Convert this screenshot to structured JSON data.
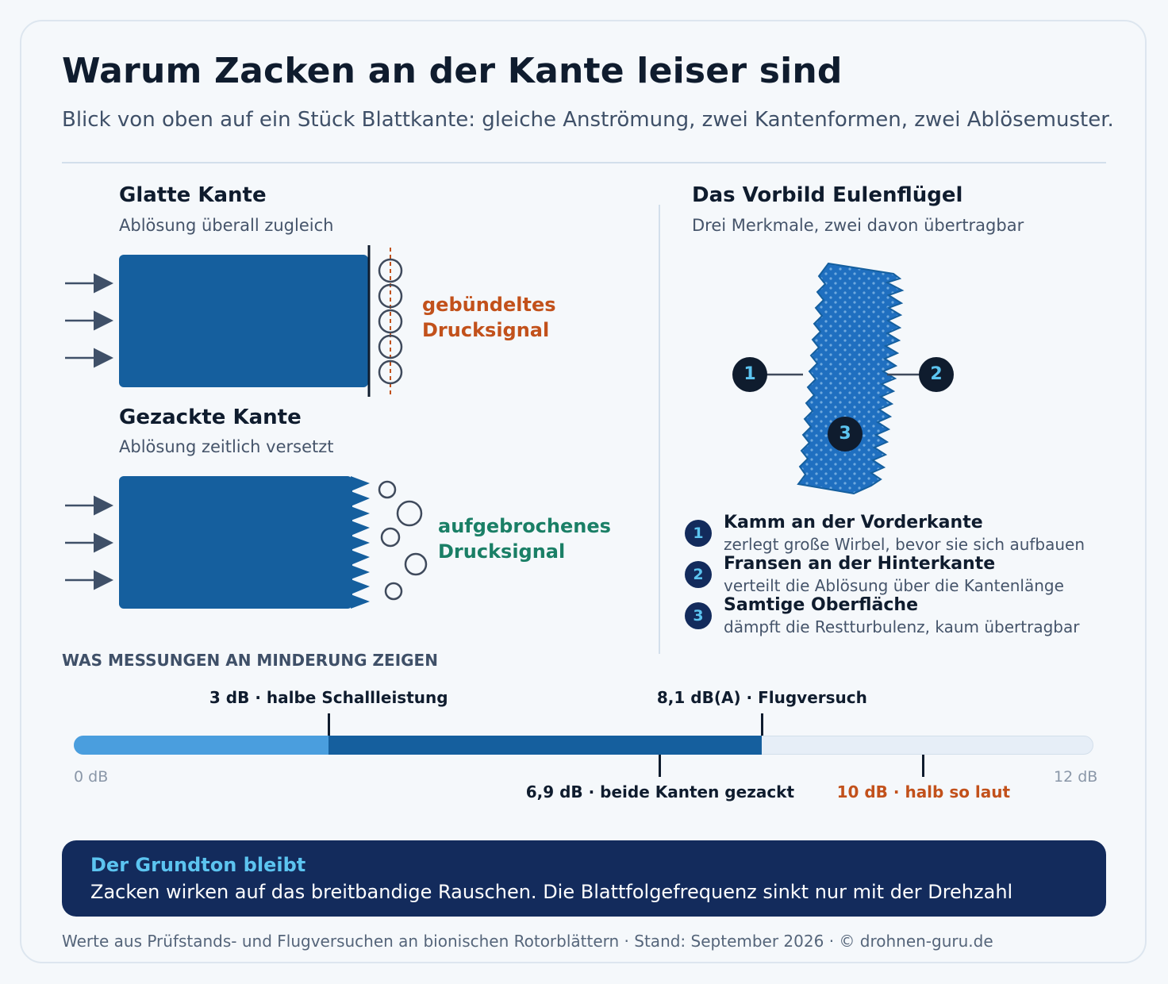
{
  "header": {
    "title": "Warum Zacken an der Kante leiser sind",
    "subtitle": "Blick von oben auf ein Stück Blattkante: gleiche Anströmung, zwei Kantenformen, zwei Ablösemuster."
  },
  "smooth_edge": {
    "heading": "Glatte Kante",
    "subheading": "Ablösung überall zugleich",
    "signal_label_line1": "gebündeltes",
    "signal_label_line2": "Drucksignal"
  },
  "serrated_edge": {
    "heading": "Gezackte Kante",
    "subheading": "Ablösung zeitlich versetzt",
    "signal_label_line1": "aufgebrochenes",
    "signal_label_line2": "Drucksignal"
  },
  "owl": {
    "heading": "Das Vorbild Eulenflügel",
    "subheading": "Drei Merkmale, zwei davon übertragbar",
    "markers": [
      "1",
      "2",
      "3"
    ],
    "features": [
      {
        "number": "1",
        "title": "Kamm an der Vorderkante",
        "desc": "zerlegt große Wirbel, bevor sie sich aufbauen"
      },
      {
        "number": "2",
        "title": "Fransen an der Hinterkante",
        "desc": "verteilt die Ablösung über die Kantenlänge"
      },
      {
        "number": "3",
        "title": "Samtige Oberfläche",
        "desc": "dämpft die Restturbulenz, kaum übertragbar"
      }
    ]
  },
  "measurements": {
    "caption": "WAS MESSUNGEN AN MINDERUNG ZEIGEN",
    "axis_min": 0,
    "axis_max": 12,
    "axis_min_label": "0 dB",
    "axis_max_label": "12 dB",
    "fill_light_to": 3,
    "fill_dark_to": 8.1,
    "markers": [
      {
        "value": 3,
        "label": "3 dB · halbe Schallleistung",
        "side": "top",
        "color": "#0f1c2e"
      },
      {
        "value": 8.1,
        "label": "8,1 dB(A) · Flugversuch",
        "side": "top",
        "color": "#0f1c2e"
      },
      {
        "value": 6.9,
        "label": "6,9 dB · beide Kanten gezackt",
        "side": "bottom",
        "color": "#0f1c2e"
      },
      {
        "value": 10,
        "label": "10 dB · halb so laut",
        "side": "bottom",
        "color": "#c2511b"
      }
    ]
  },
  "note": {
    "title": "Der Grundton bleibt",
    "text": "Zacken wirken auf das breitbandige Rauschen. Die Blattfolgefrequenz sinkt nur mit der Drehzahl"
  },
  "footer": "Werte aus Prüfstands- und Flugversuchen an bionischen Rotorblättern · Stand: September 2026 · © drohnen-guru.de",
  "colors": {
    "blade": "#155f9e",
    "orange": "#c2511b",
    "green": "#1a7f66",
    "navy": "#132b5c",
    "light_blue": "#4a9ede",
    "accent_cyan": "#5cc4f0"
  }
}
